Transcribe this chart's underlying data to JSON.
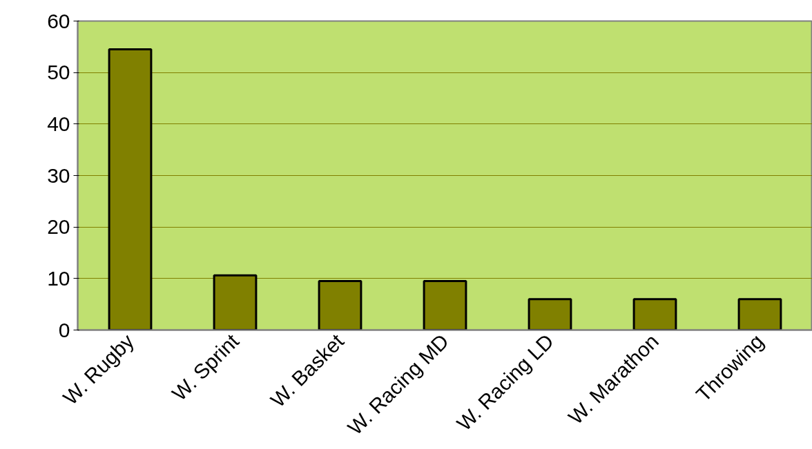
{
  "chart_data": {
    "type": "bar",
    "categories": [
      "W. Rugby",
      "W. Sprint",
      "W. Basket",
      "W. Racing MD",
      "W. Racing LD",
      "W. Marathon",
      "Throwing"
    ],
    "values": [
      54.5,
      10.6,
      9.5,
      9.5,
      6,
      6,
      6
    ],
    "color": "#808000",
    "ylim": [
      0,
      60
    ],
    "yticks": [
      0,
      10,
      20,
      30,
      40,
      50,
      60
    ],
    "grid": "y"
  }
}
